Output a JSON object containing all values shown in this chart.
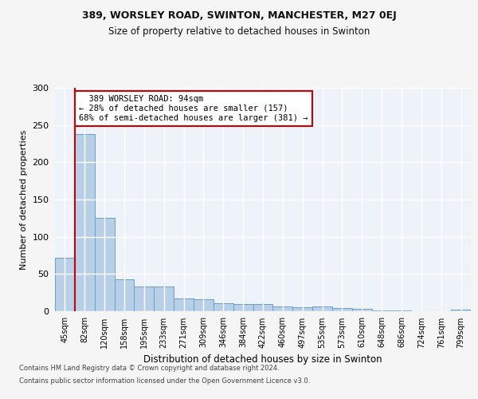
{
  "title_line1": "389, WORSLEY ROAD, SWINTON, MANCHESTER, M27 0EJ",
  "title_line2": "Size of property relative to detached houses in Swinton",
  "xlabel": "Distribution of detached houses by size in Swinton",
  "ylabel": "Number of detached properties",
  "categories": [
    "45sqm",
    "82sqm",
    "120sqm",
    "158sqm",
    "195sqm",
    "233sqm",
    "271sqm",
    "309sqm",
    "346sqm",
    "384sqm",
    "422sqm",
    "460sqm",
    "497sqm",
    "535sqm",
    "573sqm",
    "610sqm",
    "648sqm",
    "686sqm",
    "724sqm",
    "761sqm",
    "799sqm"
  ],
  "values": [
    72,
    238,
    125,
    43,
    33,
    33,
    17,
    16,
    11,
    10,
    10,
    6,
    5,
    6,
    4,
    3,
    1,
    1,
    0,
    0,
    2
  ],
  "bar_color": "#b8cfe8",
  "bar_edge_color": "#6e9ec5",
  "property_label": "389 WORSLEY ROAD: 94sqm",
  "pct_smaller": 28,
  "pct_smaller_count": 157,
  "pct_larger_semi": 68,
  "pct_larger_semi_count": 381,
  "vline_x_index": 1,
  "ylim": [
    0,
    300
  ],
  "yticks": [
    0,
    50,
    100,
    150,
    200,
    250,
    300
  ],
  "footer_line1": "Contains HM Land Registry data © Crown copyright and database right 2024.",
  "footer_line2": "Contains public sector information licensed under the Open Government Licence v3.0.",
  "background_color": "#eef2f9",
  "grid_color": "#ffffff",
  "vline_color": "#cc0000",
  "box_edge_color": "#cc0000",
  "fig_bg_color": "#f5f5f5"
}
